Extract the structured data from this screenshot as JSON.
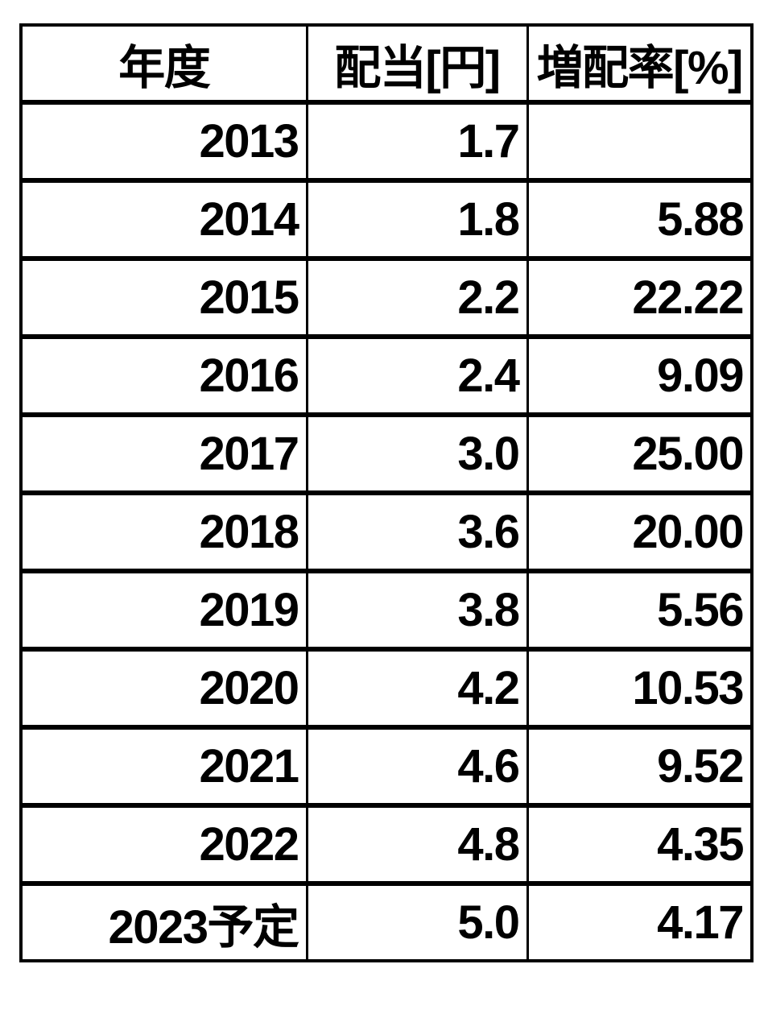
{
  "colors": {
    "background": "#ffffff",
    "text": "#000000",
    "border": "#000000"
  },
  "table": {
    "headers": [
      "年度",
      "配当[円]",
      "増配率[%]"
    ],
    "rows": [
      [
        "2013",
        "1.7",
        ""
      ],
      [
        "2014",
        "1.8",
        "5.88"
      ],
      [
        "2015",
        "2.2",
        "22.22"
      ],
      [
        "2016",
        "2.4",
        "9.09"
      ],
      [
        "2017",
        "3.0",
        "25.00"
      ],
      [
        "2018",
        "3.6",
        "20.00"
      ],
      [
        "2019",
        "3.8",
        "5.56"
      ],
      [
        "2020",
        "4.2",
        "10.53"
      ],
      [
        "2021",
        "4.6",
        "9.52"
      ],
      [
        "2022",
        "4.8",
        "4.35"
      ],
      [
        "2023予定",
        "5.0",
        "4.17"
      ]
    ]
  },
  "chart_data": {
    "type": "table",
    "title": "",
    "columns": [
      "年度",
      "配当[円]",
      "増配率[%]"
    ],
    "categories": [
      "2013",
      "2014",
      "2015",
      "2016",
      "2017",
      "2018",
      "2019",
      "2020",
      "2021",
      "2022",
      "2023予定"
    ],
    "series": [
      {
        "name": "配当[円]",
        "values": [
          1.7,
          1.8,
          2.2,
          2.4,
          3.0,
          3.6,
          3.8,
          4.2,
          4.6,
          4.8,
          5.0
        ]
      },
      {
        "name": "増配率[%]",
        "values": [
          null,
          5.88,
          22.22,
          9.09,
          25.0,
          20.0,
          5.56,
          10.53,
          9.52,
          4.35,
          4.17
        ]
      }
    ],
    "layout": {
      "grid": "full-borders",
      "header_align": "center",
      "data_align": "right"
    }
  }
}
